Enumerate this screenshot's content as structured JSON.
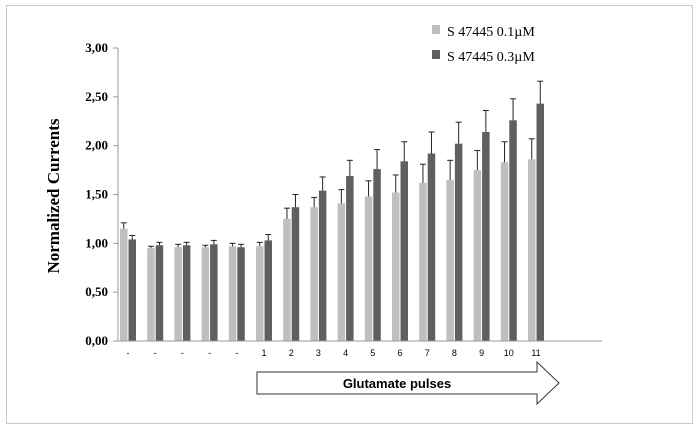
{
  "colors": {
    "series_light": "#bfbfbf",
    "series_dark": "#5f5f5f",
    "axis": "#9a9a9a",
    "error_bar": "#222222"
  },
  "arrow_label": "Glutamate pulses",
  "chart_data": {
    "type": "bar",
    "title": "",
    "xlabel": "",
    "ylabel": "Normalized Currents",
    "ylim": [
      0,
      3
    ],
    "yticks": [
      "0,00",
      "0,50",
      "1,00",
      "1,50",
      "2,00",
      "2,50",
      "3,00"
    ],
    "yticks_values": [
      0,
      0.5,
      1.0,
      1.5,
      2.0,
      2.5,
      3.0
    ],
    "grid": false,
    "legend_position": "top-right",
    "categories": [
      "-",
      "-",
      "-",
      "-",
      "-",
      "1",
      "2",
      "3",
      "4",
      "5",
      "6",
      "7",
      "8",
      "9",
      "10",
      "11"
    ],
    "series": [
      {
        "name": "S 47445 0.1µM",
        "values": [
          1.15,
          0.95,
          0.96,
          0.96,
          0.97,
          0.97,
          1.25,
          1.37,
          1.41,
          1.48,
          1.52,
          1.62,
          1.65,
          1.75,
          1.83,
          1.86
        ],
        "errors": [
          0.06,
          0.02,
          0.03,
          0.02,
          0.03,
          0.04,
          0.11,
          0.1,
          0.14,
          0.16,
          0.18,
          0.19,
          0.2,
          0.2,
          0.21,
          0.21
        ]
      },
      {
        "name": "S 47445 0.3µM",
        "values": [
          1.04,
          0.98,
          0.98,
          0.99,
          0.96,
          1.03,
          1.37,
          1.54,
          1.69,
          1.76,
          1.84,
          1.92,
          2.02,
          2.14,
          2.26,
          2.43
        ],
        "errors": [
          0.04,
          0.03,
          0.03,
          0.04,
          0.03,
          0.06,
          0.13,
          0.14,
          0.16,
          0.2,
          0.2,
          0.22,
          0.22,
          0.22,
          0.22,
          0.23
        ]
      }
    ]
  }
}
